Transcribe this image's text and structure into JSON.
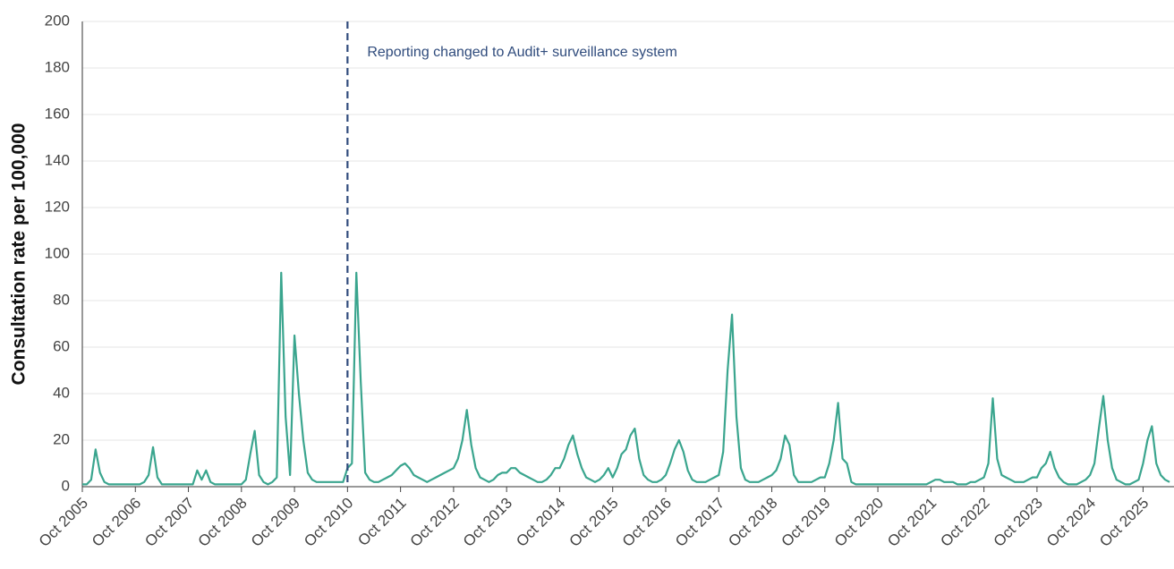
{
  "chart_data": {
    "type": "line",
    "y_label": "Consultation rate per 100,000",
    "annotation": {
      "x": "2010-10",
      "text": "Reporting changed to Audit+ surveillance system",
      "color": "#2f4b7c"
    },
    "x": [
      "2005-10",
      "2005-11",
      "2005-12",
      "2006-01",
      "2006-02",
      "2006-03",
      "2006-04",
      "2006-05",
      "2006-06",
      "2006-07",
      "2006-08",
      "2006-09",
      "2006-10",
      "2006-11",
      "2006-12",
      "2007-01",
      "2007-02",
      "2007-03",
      "2007-04",
      "2007-05",
      "2007-06",
      "2007-07",
      "2007-08",
      "2007-09",
      "2007-10",
      "2007-11",
      "2007-12",
      "2008-01",
      "2008-02",
      "2008-03",
      "2008-04",
      "2008-05",
      "2008-06",
      "2008-07",
      "2008-08",
      "2008-09",
      "2008-10",
      "2008-11",
      "2008-12",
      "2009-01",
      "2009-02",
      "2009-03",
      "2009-04",
      "2009-05",
      "2009-06",
      "2009-07",
      "2009-08",
      "2009-09",
      "2009-10",
      "2009-11",
      "2009-12",
      "2010-01",
      "2010-02",
      "2010-03",
      "2010-04",
      "2010-05",
      "2010-06",
      "2010-07",
      "2010-08",
      "2010-09",
      "2010-10",
      "2010-11",
      "2010-12",
      "2011-01",
      "2011-02",
      "2011-03",
      "2011-04",
      "2011-05",
      "2011-06",
      "2011-07",
      "2011-08",
      "2011-09",
      "2011-10",
      "2011-11",
      "2011-12",
      "2012-01",
      "2012-02",
      "2012-03",
      "2012-04",
      "2012-05",
      "2012-06",
      "2012-07",
      "2012-08",
      "2012-09",
      "2012-10",
      "2012-11",
      "2012-12",
      "2013-01",
      "2013-02",
      "2013-03",
      "2013-04",
      "2013-05",
      "2013-06",
      "2013-07",
      "2013-08",
      "2013-09",
      "2013-10",
      "2013-11",
      "2013-12",
      "2014-01",
      "2014-02",
      "2014-03",
      "2014-04",
      "2014-05",
      "2014-06",
      "2014-07",
      "2014-08",
      "2014-09",
      "2014-10",
      "2014-11",
      "2014-12",
      "2015-01",
      "2015-02",
      "2015-03",
      "2015-04",
      "2015-05",
      "2015-06",
      "2015-07",
      "2015-08",
      "2015-09",
      "2015-10",
      "2015-11",
      "2015-12",
      "2016-01",
      "2016-02",
      "2016-03",
      "2016-04",
      "2016-05",
      "2016-06",
      "2016-07",
      "2016-08",
      "2016-09",
      "2016-10",
      "2016-11",
      "2016-12",
      "2017-01",
      "2017-02",
      "2017-03",
      "2017-04",
      "2017-05",
      "2017-06",
      "2017-07",
      "2017-08",
      "2017-09",
      "2017-10",
      "2017-11",
      "2017-12",
      "2018-01",
      "2018-02",
      "2018-03",
      "2018-04",
      "2018-05",
      "2018-06",
      "2018-07",
      "2018-08",
      "2018-09",
      "2018-10",
      "2018-11",
      "2018-12",
      "2019-01",
      "2019-02",
      "2019-03",
      "2019-04",
      "2019-05",
      "2019-06",
      "2019-07",
      "2019-08",
      "2019-09",
      "2019-10",
      "2019-11",
      "2019-12",
      "2020-01",
      "2020-02",
      "2020-03",
      "2020-04",
      "2020-05",
      "2020-06",
      "2020-07",
      "2020-08",
      "2020-09",
      "2020-10",
      "2020-11",
      "2020-12",
      "2021-01",
      "2021-02",
      "2021-03",
      "2021-04",
      "2021-05",
      "2021-06",
      "2021-07",
      "2021-08",
      "2021-09",
      "2021-10",
      "2021-11",
      "2021-12",
      "2022-01",
      "2022-02",
      "2022-03",
      "2022-04",
      "2022-05",
      "2022-06",
      "2022-07",
      "2022-08",
      "2022-09",
      "2022-10",
      "2022-11",
      "2022-12",
      "2023-01",
      "2023-02",
      "2023-03",
      "2023-04",
      "2023-05",
      "2023-06",
      "2023-07",
      "2023-08",
      "2023-09",
      "2023-10",
      "2023-11",
      "2023-12",
      "2024-01",
      "2024-02",
      "2024-03",
      "2024-04",
      "2024-05",
      "2024-06",
      "2024-07",
      "2024-08",
      "2024-09",
      "2024-10",
      "2024-11",
      "2024-12",
      "2025-01",
      "2025-02",
      "2025-03",
      "2025-04",
      "2025-05",
      "2025-06",
      "2025-07",
      "2025-08",
      "2025-09",
      "2025-10",
      "2025-11",
      "2025-12",
      "2026-01",
      "2026-02",
      "2026-03",
      "2026-04"
    ],
    "series": [
      {
        "color": "#3aa58e",
        "values": [
          1,
          1,
          3,
          16,
          6,
          2,
          1,
          1,
          1,
          1,
          1,
          1,
          1,
          1,
          2,
          5,
          17,
          4,
          1,
          1,
          1,
          1,
          1,
          1,
          1,
          1,
          7,
          3,
          7,
          2,
          1,
          1,
          1,
          1,
          1,
          1,
          1,
          3,
          14,
          24,
          5,
          2,
          1,
          2,
          4,
          92,
          30,
          5,
          65,
          40,
          20,
          6,
          3,
          2,
          2,
          2,
          2,
          2,
          2,
          2,
          8,
          10,
          92,
          45,
          6,
          3,
          2,
          2,
          3,
          4,
          5,
          7,
          9,
          10,
          8,
          5,
          4,
          3,
          2,
          3,
          4,
          5,
          6,
          7,
          8,
          12,
          20,
          33,
          18,
          8,
          4,
          3,
          2,
          3,
          5,
          6,
          6,
          8,
          8,
          6,
          5,
          4,
          3,
          2,
          2,
          3,
          5,
          8,
          8,
          12,
          18,
          22,
          14,
          8,
          4,
          3,
          2,
          3,
          5,
          8,
          4,
          8,
          14,
          16,
          22,
          25,
          12,
          5,
          3,
          2,
          2,
          3,
          5,
          10,
          16,
          20,
          15,
          7,
          3,
          2,
          2,
          2,
          3,
          4,
          5,
          15,
          50,
          74,
          30,
          8,
          3,
          2,
          2,
          2,
          3,
          4,
          5,
          7,
          12,
          22,
          18,
          5,
          2,
          2,
          2,
          2,
          3,
          4,
          4,
          10,
          20,
          36,
          12,
          10,
          2,
          1,
          1,
          1,
          1,
          1,
          1,
          1,
          1,
          1,
          1,
          1,
          1,
          1,
          1,
          1,
          1,
          1,
          2,
          3,
          3,
          2,
          2,
          2,
          1,
          1,
          1,
          2,
          2,
          3,
          4,
          10,
          38,
          12,
          5,
          4,
          3,
          2,
          2,
          2,
          3,
          4,
          4,
          8,
          10,
          15,
          8,
          4,
          2,
          1,
          1,
          1,
          2,
          3,
          5,
          10,
          25,
          39,
          20,
          8,
          3,
          2,
          1,
          1,
          2,
          3,
          10,
          20,
          26,
          10,
          5,
          3,
          2
        ]
      }
    ],
    "xlim": [
      "2005-10",
      "2026-05"
    ],
    "xticks": [
      {
        "value": "2005-10",
        "label": "Oct 2005"
      },
      {
        "value": "2006-10",
        "label": "Oct 2006"
      },
      {
        "value": "2007-10",
        "label": "Oct 2007"
      },
      {
        "value": "2008-10",
        "label": "Oct 2008"
      },
      {
        "value": "2009-10",
        "label": "Oct 2009"
      },
      {
        "value": "2010-10",
        "label": "Oct 2010"
      },
      {
        "value": "2011-10",
        "label": "Oct 2011"
      },
      {
        "value": "2012-10",
        "label": "Oct 2012"
      },
      {
        "value": "2013-10",
        "label": "Oct 2013"
      },
      {
        "value": "2014-10",
        "label": "Oct 2014"
      },
      {
        "value": "2015-10",
        "label": "Oct 2015"
      },
      {
        "value": "2016-10",
        "label": "Oct 2016"
      },
      {
        "value": "2017-10",
        "label": "Oct 2017"
      },
      {
        "value": "2018-10",
        "label": "Oct 2018"
      },
      {
        "value": "2019-10",
        "label": "Oct 2019"
      },
      {
        "value": "2020-10",
        "label": "Oct 2020"
      },
      {
        "value": "2021-10",
        "label": "Oct 2021"
      },
      {
        "value": "2022-10",
        "label": "Oct 2022"
      },
      {
        "value": "2023-10",
        "label": "Oct 2023"
      },
      {
        "value": "2024-10",
        "label": "Oct 2024"
      },
      {
        "value": "2025-10",
        "label": "Oct 2025"
      }
    ],
    "ylim": [
      0,
      200
    ],
    "yticks": [
      0,
      20,
      40,
      60,
      80,
      100,
      120,
      140,
      160,
      180,
      200
    ],
    "grid": true
  }
}
